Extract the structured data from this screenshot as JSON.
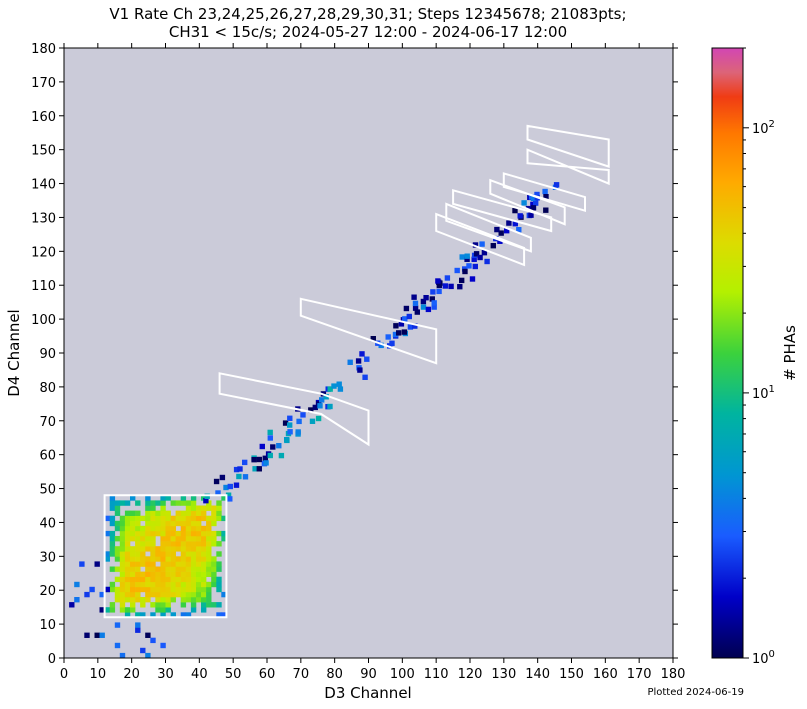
{
  "chart_data": {
    "type": "heatmap",
    "title_line1": "V1 Rate Ch 23,24,25,26,27,28,29,30,31; Steps 12345678; 21083pts;",
    "title_line2": "CH31 < 15c/s; 2024-05-27 12:00 - 2024-06-17 12:00",
    "xlabel": "D3 Channel",
    "ylabel": "D4 Channel",
    "xlim": [
      0,
      180
    ],
    "ylim": [
      0,
      180
    ],
    "xticks": [
      "0",
      "10",
      "20",
      "30",
      "40",
      "50",
      "60",
      "70",
      "80",
      "90",
      "100",
      "110",
      "120",
      "130",
      "140",
      "150",
      "160",
      "170",
      "180"
    ],
    "yticks": [
      "0",
      "10",
      "20",
      "30",
      "40",
      "50",
      "60",
      "70",
      "80",
      "90",
      "100",
      "110",
      "120",
      "130",
      "140",
      "150",
      "160",
      "170",
      "180"
    ],
    "colorbar": {
      "label": "# PHAs",
      "scale": "log",
      "range": [
        1,
        200
      ],
      "ticks": [
        {
          "value": 1,
          "base": "10",
          "exp": "0"
        },
        {
          "value": 10,
          "base": "10",
          "exp": "1"
        },
        {
          "value": 100,
          "base": "10",
          "exp": "2"
        }
      ]
    },
    "background_color": "#cbcbd9",
    "boxes": [
      {
        "name": "box-main",
        "points": [
          [
            12,
            12
          ],
          [
            48,
            12
          ],
          [
            48,
            48
          ],
          [
            12,
            48
          ]
        ]
      },
      {
        "name": "box-1",
        "points": [
          [
            46,
            84
          ],
          [
            76,
            78
          ],
          [
            90,
            73
          ],
          [
            90,
            63
          ],
          [
            76,
            72
          ],
          [
            46,
            78
          ]
        ]
      },
      {
        "name": "box-2",
        "points": [
          [
            70,
            106
          ],
          [
            110,
            97
          ],
          [
            110,
            87
          ],
          [
            70,
            101
          ]
        ]
      },
      {
        "name": "box-3",
        "points": [
          [
            110,
            131
          ],
          [
            136,
            121
          ],
          [
            136,
            116
          ],
          [
            110,
            126
          ]
        ]
      },
      {
        "name": "box-4",
        "points": [
          [
            113,
            134
          ],
          [
            138,
            124
          ],
          [
            138,
            120
          ],
          [
            113,
            129
          ]
        ]
      },
      {
        "name": "box-5",
        "points": [
          [
            115,
            138
          ],
          [
            144,
            130
          ],
          [
            144,
            126
          ],
          [
            115,
            134
          ]
        ]
      },
      {
        "name": "box-6",
        "points": [
          [
            126,
            141
          ],
          [
            148,
            133
          ],
          [
            148,
            128
          ],
          [
            126,
            137
          ]
        ]
      },
      {
        "name": "box-7",
        "points": [
          [
            130,
            143
          ],
          [
            154,
            136
          ],
          [
            154,
            132
          ],
          [
            130,
            139
          ]
        ]
      },
      {
        "name": "box-8",
        "points": [
          [
            137,
            146
          ],
          [
            161,
            144
          ],
          [
            161,
            140
          ],
          [
            137,
            150
          ]
        ]
      },
      {
        "name": "box-9",
        "points": [
          [
            137,
            157
          ],
          [
            161,
            153
          ],
          [
            161,
            145
          ],
          [
            137,
            153
          ]
        ]
      }
    ],
    "regions": [
      {
        "name": "main-cluster",
        "x": [
          12,
          47
        ],
        "y": [
          12,
          47
        ],
        "peak": 60,
        "density": 0.95
      },
      {
        "name": "diagonal-band",
        "from": [
          42,
          44
        ],
        "to": [
          145,
          140
        ],
        "width": 3,
        "peak": 8,
        "density": 0.55
      },
      {
        "name": "low-scatter",
        "x": [
          0,
          30
        ],
        "y": [
          0,
          30
        ],
        "peak": 3,
        "density": 0.08
      }
    ]
  },
  "footer": {
    "plotted": "Plotted 2024-06-19"
  }
}
